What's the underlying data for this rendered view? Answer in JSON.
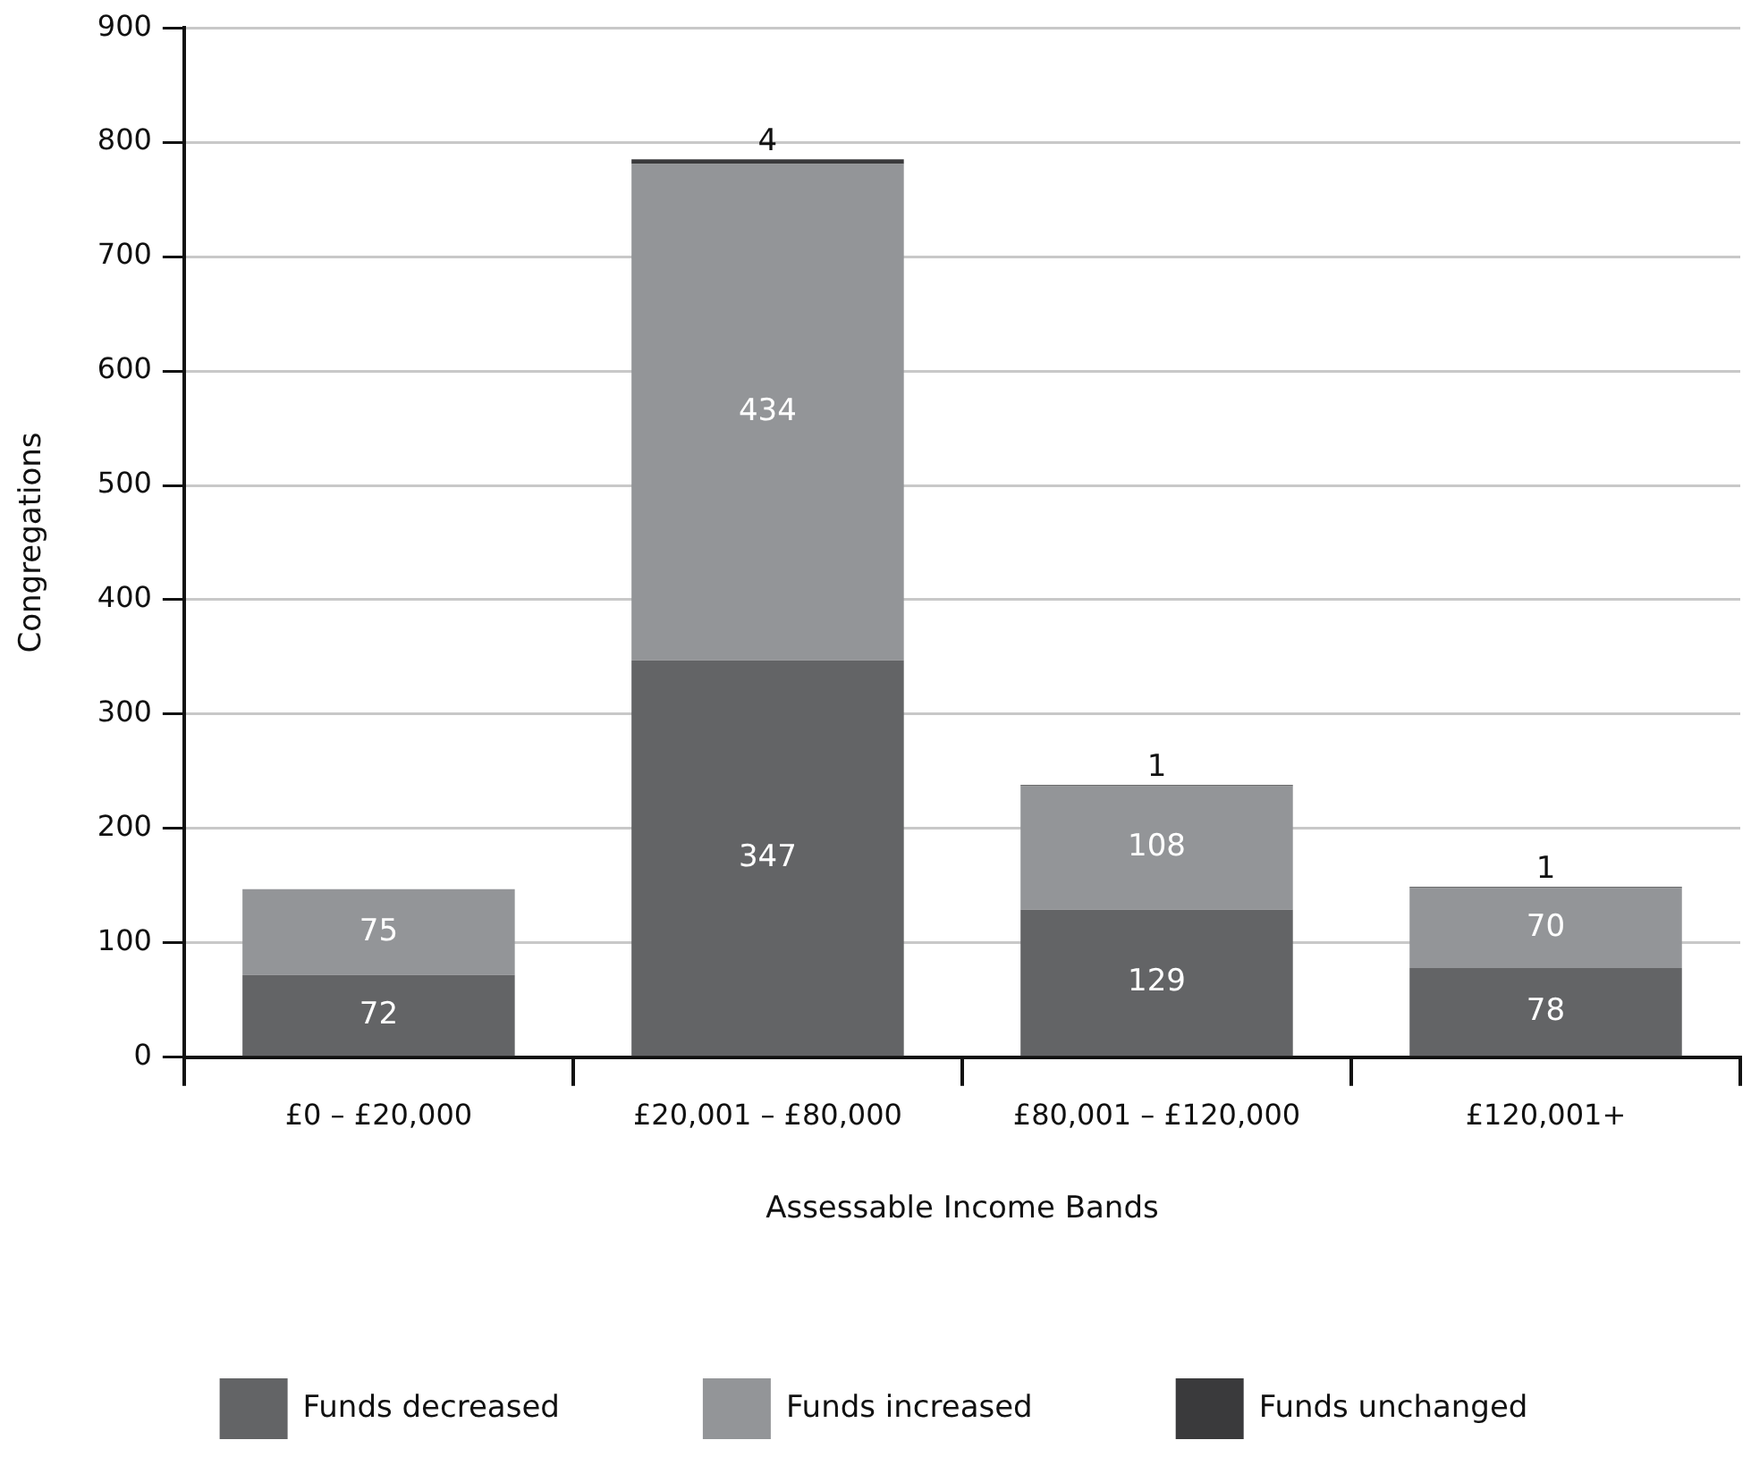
{
  "chart_data": {
    "type": "bar",
    "stacked": true,
    "xlabel": "Assessable Income Bands",
    "ylabel": "Congregations",
    "categories": [
      "£0 – £20,000",
      "£20,001 – £80,000",
      "£80,001 – £120,000",
      "£120,001+"
    ],
    "series": [
      {
        "name": "Funds decreased",
        "color": "#636466",
        "values": [
          72,
          347,
          129,
          78
        ]
      },
      {
        "name": "Funds increased",
        "color": "#939598",
        "values": [
          75,
          434,
          108,
          70
        ]
      },
      {
        "name": "Funds unchanged",
        "color": "#3a3a3c",
        "values": [
          null,
          4,
          1,
          1
        ]
      }
    ],
    "ylim": [
      0,
      900
    ],
    "yticks": [
      0,
      100,
      200,
      300,
      400,
      500,
      600,
      700,
      800,
      900
    ],
    "grid": "y",
    "legend": "bottom",
    "data_labels": true
  }
}
